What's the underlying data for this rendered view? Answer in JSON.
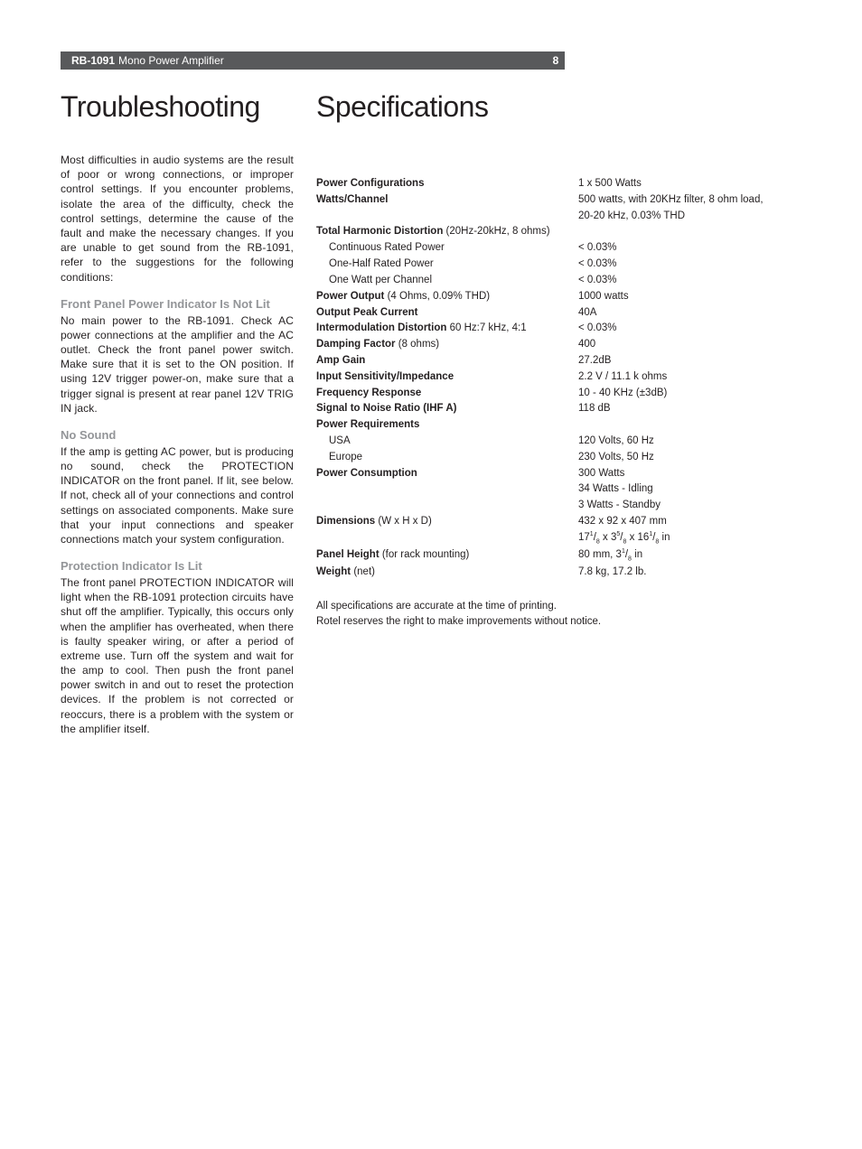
{
  "header": {
    "model": "RB-1091",
    "desc": "Mono Power Amplifier",
    "page": "8"
  },
  "left": {
    "title": "Troubleshooting",
    "intro": "Most difficulties in audio systems are the result of poor or wrong connections, or improper control settings. If you encounter problems, isolate the area of the difficulty, check the control settings, determine the cause of the fault and make the necessary changes. If you are unable to get sound from the RB-1091, refer to the suggestions for the following conditions:",
    "sections": [
      {
        "heading": "Front Panel Power Indicator Is Not Lit",
        "body": "No main power to the RB-1091. Check AC power connections at the amplifier and the AC outlet. Check the front panel power switch. Make sure that it is set to the ON position. If using 12V trigger power-on, make sure that a trigger signal is present at rear panel 12V TRIG IN jack."
      },
      {
        "heading": "No Sound",
        "body": "If the amp is getting AC power, but is producing no sound, check the PROTECTION INDICATOR on the front panel. If lit, see below. If not, check all of your connections and control settings on associated components. Make sure that your input connections and speaker connections match your system configuration."
      },
      {
        "heading": "Protection Indicator Is Lit",
        "body": "The front panel PROTECTION INDICATOR will light when the RB-1091 protection circuits have shut off the amplifier. Typically, this occurs only when the amplifier has overheated, when there is faulty speaker wiring, or after a period of extreme use. Turn off the system and wait for the amp to cool. Then push the front panel power switch in and out to reset the protection devices. If the problem is not corrected or reoccurs, there is a problem with the system or the amplifier itself."
      }
    ]
  },
  "right": {
    "title": "Specifications",
    "rows": [
      {
        "label_bold": "Power Configurations",
        "label_rest": "",
        "value": "1 x 500 Watts"
      },
      {
        "label_bold": "Watts/Channel",
        "label_rest": "",
        "value": "500 watts, with 20KHz filter, 8 ohm load,"
      },
      {
        "label_bold": "",
        "label_rest": "",
        "value": "20-20 kHz, 0.03% THD"
      },
      {
        "label_bold": "Total Harmonic Distortion",
        "label_rest": " (20Hz-20kHz, 8 ohms)",
        "value": ""
      },
      {
        "indent": true,
        "label_bold": "",
        "label_rest": "Continuous Rated Power",
        "value": "< 0.03%"
      },
      {
        "indent": true,
        "label_bold": "",
        "label_rest": "One-Half Rated Power",
        "value": "< 0.03%"
      },
      {
        "indent": true,
        "label_bold": "",
        "label_rest": "One Watt per Channel",
        "value": "< 0.03%"
      },
      {
        "label_bold": "Power Output",
        "label_rest": " (4 Ohms, 0.09% THD)",
        "value": "1000 watts"
      },
      {
        "label_bold": "Output Peak Current",
        "label_rest": "",
        "value": "40A"
      },
      {
        "label_bold": "Intermodulation Distortion",
        "label_rest": " 60 Hz:7 kHz, 4:1",
        "value": "< 0.03%"
      },
      {
        "label_bold": "Damping Factor",
        "label_rest": " (8 ohms)",
        "value": "400"
      },
      {
        "label_bold": "Amp Gain",
        "label_rest": "",
        "value": "27.2dB"
      },
      {
        "label_bold": "Input Sensitivity/Impedance",
        "label_rest": "",
        "value": "2.2 V / 11.1 k ohms"
      },
      {
        "label_bold": "Frequency Response",
        "label_rest": "",
        "value": "10 - 40 KHz (±3dB)"
      },
      {
        "label_bold": "Signal to Noise Ratio (IHF A)",
        "label_rest": "",
        "value": "118 dB"
      },
      {
        "label_bold": "Power Requirements",
        "label_rest": "",
        "value": ""
      },
      {
        "indent": true,
        "label_bold": "",
        "label_rest": "USA",
        "value": "120 Volts, 60 Hz"
      },
      {
        "indent": true,
        "label_bold": "",
        "label_rest": "Europe",
        "value": "230 Volts, 50 Hz"
      },
      {
        "label_bold": "Power Consumption",
        "label_rest": "",
        "value": "300 Watts"
      },
      {
        "label_bold": "",
        "label_rest": "",
        "value": "34 Watts - Idling"
      },
      {
        "label_bold": "",
        "label_rest": "",
        "value": "3 Watts - Standby"
      },
      {
        "label_bold": "Dimensions",
        "label_rest": " (W x H x D)",
        "value": "432 x 92 x 407 mm"
      },
      {
        "label_bold": "",
        "label_rest": "",
        "value_html": "17<span class='sup'>1</span>/<span class='sub'>8</span> x 3<span class='sup'>5</span>/<span class='sub'>8</span> x 16<span class='sup'>1</span>/<span class='sub'>8</span> in"
      },
      {
        "label_bold": "Panel Height",
        "label_rest": " (for rack mounting)",
        "value_html": "80 mm, 3<span class='sup'>1</span>/<span class='sub'>8</span> in"
      },
      {
        "label_bold": "Weight",
        "label_rest": " (net)",
        "value": "7.8 kg, 17.2 lb."
      }
    ],
    "notes": [
      "All specifications are accurate at the time of printing.",
      "Rotel reserves the right to make improvements without notice."
    ]
  }
}
